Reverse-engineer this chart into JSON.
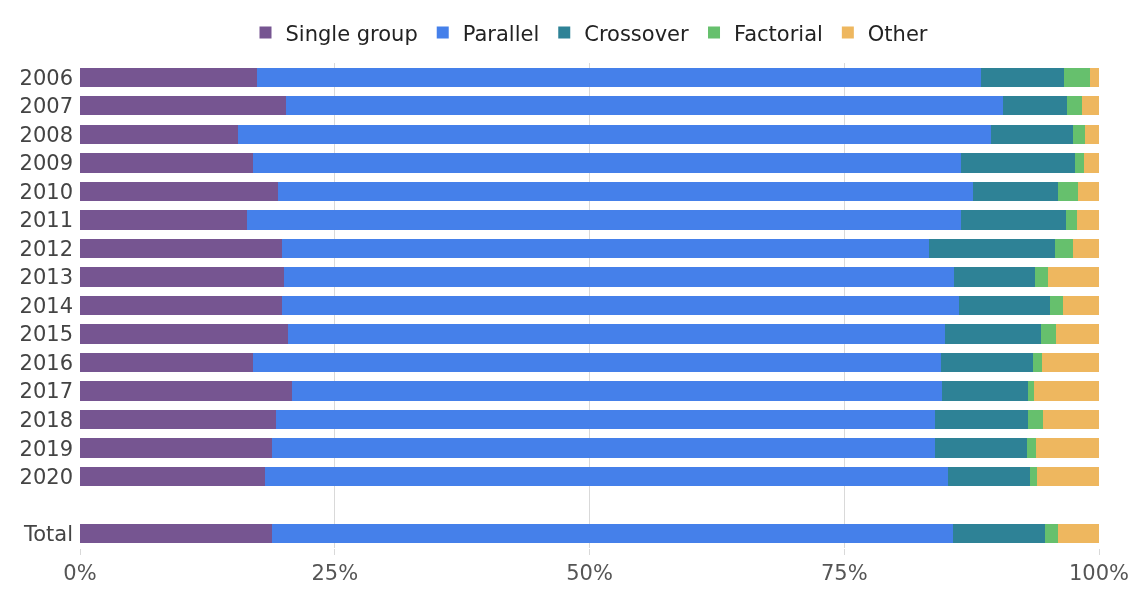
{
  "chart_data": {
    "type": "bar",
    "orientation": "horizontal",
    "stacked": true,
    "categories": [
      "2006",
      "2007",
      "2008",
      "2009",
      "2010",
      "2011",
      "2012",
      "2013",
      "2014",
      "2015",
      "2016",
      "2017",
      "2018",
      "2019",
      "2020",
      null,
      "Total"
    ],
    "series": [
      {
        "name": "Single group",
        "color": "#765591",
        "values": [
          17.4,
          20.2,
          15.5,
          17.0,
          19.4,
          16.4,
          19.8,
          20.0,
          19.8,
          20.4,
          17.0,
          20.8,
          19.2,
          18.8,
          18.2,
          null,
          18.8
        ]
      },
      {
        "name": "Parallel",
        "color": "#4580ea",
        "values": [
          71.0,
          70.4,
          73.9,
          69.5,
          68.2,
          70.1,
          63.5,
          65.8,
          66.5,
          64.5,
          67.5,
          63.8,
          64.7,
          65.1,
          67.0,
          null,
          66.9
        ]
      },
      {
        "name": "Crossover",
        "color": "#2e8296",
        "values": [
          8.2,
          6.3,
          8.0,
          11.1,
          8.4,
          10.3,
          12.4,
          7.9,
          8.9,
          9.4,
          9.0,
          8.4,
          9.1,
          9.0,
          8.0,
          null,
          9.0
        ]
      },
      {
        "name": "Factorial",
        "color": "#66c06d",
        "values": [
          2.5,
          1.4,
          1.2,
          0.9,
          1.9,
          1.0,
          1.7,
          1.3,
          1.3,
          1.5,
          0.9,
          0.6,
          1.5,
          0.9,
          0.7,
          null,
          1.3
        ]
      },
      {
        "name": "Other",
        "color": "#eeb75f",
        "values": [
          0.9,
          1.7,
          1.4,
          1.5,
          2.1,
          2.2,
          2.6,
          5.0,
          3.5,
          4.2,
          5.6,
          6.4,
          5.5,
          6.2,
          6.1,
          null,
          4.0
        ]
      }
    ],
    "xlim": [
      0,
      100
    ],
    "xticks": [
      {
        "value": 0,
        "label": "0%"
      },
      {
        "value": 25,
        "label": "25%"
      },
      {
        "value": 50,
        "label": "50%"
      },
      {
        "value": 75,
        "label": "75%"
      },
      {
        "value": 100,
        "label": "100%"
      }
    ],
    "grid": "x",
    "legend": "top"
  }
}
